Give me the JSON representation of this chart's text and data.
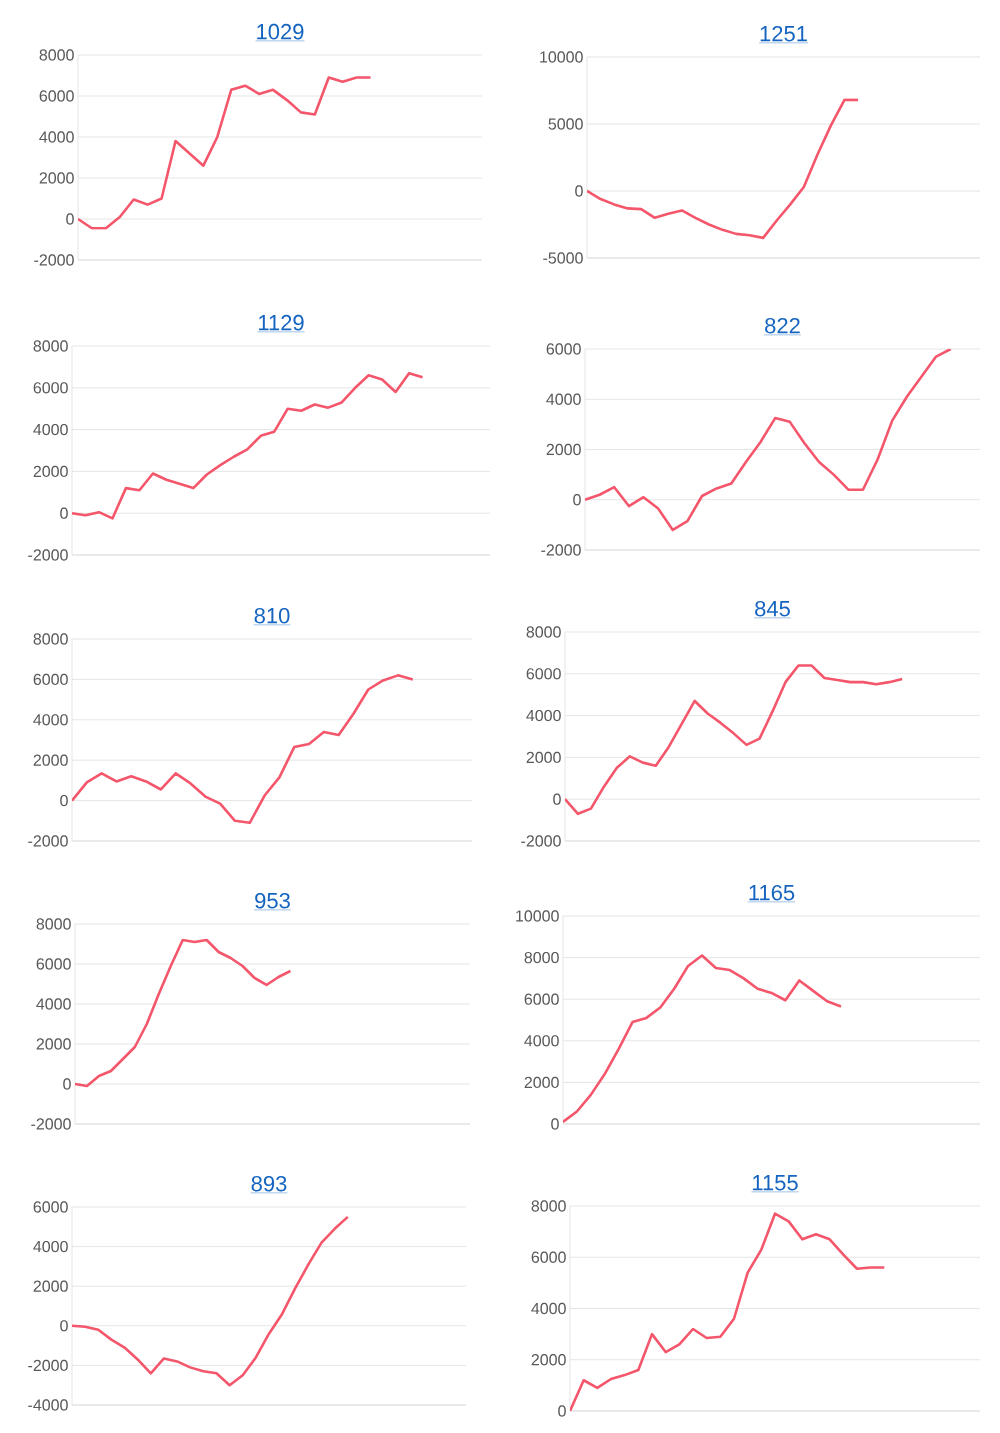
{
  "chart_data": [
    {
      "type": "line",
      "title": "1029",
      "categories": [
        null,
        null,
        null,
        null,
        null,
        null,
        null,
        null,
        null,
        null,
        null,
        null,
        null,
        null,
        null,
        null,
        null,
        null,
        null,
        null,
        null,
        null,
        null,
        null,
        null,
        null,
        null,
        null,
        null,
        null
      ],
      "values": [
        0,
        -450,
        -450,
        100,
        950,
        700,
        1000,
        3800,
        3200,
        2600,
        4000,
        6300,
        6500,
        6100,
        6300,
        5800,
        5200,
        5100,
        6900,
        6700,
        6900,
        6900,
        null,
        null,
        null,
        null,
        null,
        null,
        null,
        null
      ],
      "color": "#f4566b",
      "ylim": [
        -2000,
        8000
      ],
      "yticks": [
        -2000,
        0,
        2000,
        4000,
        6000,
        8000
      ],
      "grid": "y",
      "tick_labels": "y"
    },
    {
      "type": "line",
      "title": "1251",
      "categories": [
        null,
        null,
        null,
        null,
        null,
        null,
        null,
        null,
        null,
        null,
        null,
        null,
        null,
        null,
        null,
        null,
        null,
        null,
        null,
        null,
        null,
        null,
        null,
        null,
        null,
        null,
        null,
        null,
        null,
        null
      ],
      "values": [
        0,
        -600,
        -1000,
        -1300,
        -1350,
        -2000,
        -1700,
        -1450,
        -2000,
        -2500,
        -2900,
        -3200,
        -3300,
        -3500,
        -2200,
        -1000,
        300,
        2700,
        4900,
        6800,
        6800,
        null,
        null,
        null,
        null,
        null,
        null,
        null,
        null,
        null
      ],
      "color": "#f4566b",
      "ylim": [
        -5000,
        10000
      ],
      "yticks": [
        -5000,
        0,
        5000,
        10000
      ],
      "grid": "y",
      "tick_labels": "y"
    },
    {
      "type": "line",
      "title": "1129",
      "categories": [
        null,
        null,
        null,
        null,
        null,
        null,
        null,
        null,
        null,
        null,
        null,
        null,
        null,
        null,
        null,
        null,
        null,
        null,
        null,
        null,
        null,
        null,
        null,
        null,
        null,
        null,
        null,
        null,
        null,
        null,
        null,
        null
      ],
      "values": [
        0,
        -100,
        50,
        -250,
        1200,
        1100,
        1900,
        1600,
        1400,
        1200,
        1850,
        2300,
        2700,
        3050,
        3700,
        3900,
        5000,
        4900,
        5200,
        5050,
        5300,
        6000,
        6600,
        6400,
        5800,
        6700,
        6500,
        null,
        null,
        null,
        null,
        null
      ],
      "color": "#f4566b",
      "ylim": [
        -2000,
        8000
      ],
      "yticks": [
        -2000,
        0,
        2000,
        4000,
        6000,
        8000
      ],
      "grid": "y",
      "tick_labels": "y"
    },
    {
      "type": "line",
      "title": "822",
      "categories": [
        null,
        null,
        null,
        null,
        null,
        null,
        null,
        null,
        null,
        null,
        null,
        null,
        null,
        null,
        null,
        null,
        null,
        null,
        null,
        null,
        null,
        null,
        null,
        null,
        null,
        null,
        null,
        null
      ],
      "values": [
        0,
        200,
        500,
        -250,
        100,
        -350,
        -1200,
        -850,
        150,
        450,
        650,
        1500,
        2300,
        3250,
        3100,
        2250,
        1500,
        1000,
        400,
        400,
        1600,
        3150,
        4100,
        4900,
        5700,
        6000,
        null,
        null
      ],
      "color": "#f4566b",
      "ylim": [
        -2000,
        6000
      ],
      "yticks": [
        -2000,
        0,
        2000,
        4000,
        6000
      ],
      "grid": "y",
      "tick_labels": "y"
    },
    {
      "type": "line",
      "title": "810",
      "categories": [
        null,
        null,
        null,
        null,
        null,
        null,
        null,
        null,
        null,
        null,
        null,
        null,
        null,
        null,
        null,
        null,
        null,
        null,
        null,
        null,
        null,
        null,
        null,
        null,
        null,
        null,
        null,
        null
      ],
      "values": [
        0,
        900,
        1350,
        950,
        1200,
        950,
        550,
        1350,
        850,
        200,
        -150,
        -1000,
        -1100,
        250,
        1150,
        2650,
        2800,
        3400,
        3250,
        4300,
        5500,
        5950,
        6200,
        6000,
        null,
        null,
        null,
        null
      ],
      "color": "#f4566b",
      "ylim": [
        -2000,
        8000
      ],
      "yticks": [
        -2000,
        0,
        2000,
        4000,
        6000,
        8000
      ],
      "grid": "y",
      "tick_labels": "y"
    },
    {
      "type": "line",
      "title": "845",
      "categories": [
        null,
        null,
        null,
        null,
        null,
        null,
        null,
        null,
        null,
        null,
        null,
        null,
        null,
        null,
        null,
        null,
        null,
        null,
        null,
        null,
        null,
        null,
        null,
        null,
        null,
        null,
        null,
        null,
        null,
        null,
        null,
        null,
        null
      ],
      "values": [
        0,
        -700,
        -450,
        600,
        1500,
        2050,
        1750,
        1600,
        2500,
        3600,
        4700,
        4100,
        3650,
        3150,
        2600,
        2900,
        4200,
        5600,
        6400,
        6400,
        5800,
        5700,
        5600,
        5600,
        5500,
        5600,
        5750,
        null,
        null,
        null,
        null,
        null,
        null
      ],
      "color": "#f4566b",
      "ylim": [
        -2000,
        8000
      ],
      "yticks": [
        -2000,
        0,
        2000,
        4000,
        6000,
        8000
      ],
      "grid": "y",
      "tick_labels": "y"
    },
    {
      "type": "line",
      "title": "953",
      "categories": [
        null,
        null,
        null,
        null,
        null,
        null,
        null,
        null,
        null,
        null,
        null,
        null,
        null,
        null,
        null,
        null,
        null,
        null,
        null,
        null,
        null,
        null,
        null,
        null,
        null,
        null,
        null,
        null,
        null,
        null,
        null,
        null,
        null,
        null
      ],
      "values": [
        0,
        -100,
        400,
        650,
        1250,
        1850,
        3000,
        4500,
        5900,
        7200,
        7100,
        7200,
        6600,
        6300,
        5900,
        5300,
        4950,
        5350,
        5650,
        null,
        null,
        null,
        null,
        null,
        null,
        null,
        null,
        null,
        null,
        null,
        null,
        null,
        null,
        null
      ],
      "color": "#f4566b",
      "ylim": [
        -2000,
        8000
      ],
      "yticks": [
        -2000,
        0,
        2000,
        4000,
        6000,
        8000
      ],
      "grid": "y",
      "tick_labels": "y"
    },
    {
      "type": "line",
      "title": "1165",
      "categories": [
        null,
        null,
        null,
        null,
        null,
        null,
        null,
        null,
        null,
        null,
        null,
        null,
        null,
        null,
        null,
        null,
        null,
        null,
        null,
        null,
        null,
        null,
        null,
        null,
        null,
        null,
        null,
        null,
        null,
        null,
        null
      ],
      "values": [
        100,
        600,
        1400,
        2400,
        3600,
        4900,
        5100,
        5600,
        6500,
        7600,
        8100,
        7500,
        7400,
        7000,
        6500,
        6300,
        5950,
        6900,
        6400,
        5900,
        5650,
        null,
        null,
        null,
        null,
        null,
        null,
        null,
        null,
        null,
        null
      ],
      "color": "#f4566b",
      "ylim": [
        0,
        10000
      ],
      "yticks": [
        0,
        2000,
        4000,
        6000,
        8000,
        10000
      ],
      "grid": "y",
      "tick_labels": "y"
    },
    {
      "type": "line",
      "title": "893",
      "categories": [
        null,
        null,
        null,
        null,
        null,
        null,
        null,
        null,
        null,
        null,
        null,
        null,
        null,
        null,
        null,
        null,
        null,
        null,
        null,
        null,
        null,
        null,
        null,
        null,
        null,
        null,
        null,
        null,
        null,
        null,
        null
      ],
      "values": [
        0,
        -50,
        -200,
        -700,
        -1100,
        -1700,
        -2400,
        -1650,
        -1800,
        -2100,
        -2300,
        -2400,
        -3000,
        -2500,
        -1600,
        -400,
        600,
        1900,
        3100,
        4200,
        4900,
        5500,
        null,
        null,
        null,
        null,
        null,
        null,
        null,
        null,
        null
      ],
      "color": "#f4566b",
      "ylim": [
        -4000,
        6000
      ],
      "yticks": [
        -4000,
        -2000,
        0,
        2000,
        4000,
        6000
      ],
      "grid": "y",
      "tick_labels": "y"
    },
    {
      "type": "line",
      "title": "1155",
      "categories": [
        null,
        null,
        null,
        null,
        null,
        null,
        null,
        null,
        null,
        null,
        null,
        null,
        null,
        null,
        null,
        null,
        null,
        null,
        null,
        null,
        null,
        null,
        null,
        null,
        null,
        null,
        null,
        null,
        null,
        null,
        null
      ],
      "values": [
        0,
        1200,
        900,
        1250,
        1400,
        1600,
        3000,
        2300,
        2600,
        3200,
        2850,
        2900,
        3600,
        5400,
        6300,
        7700,
        7400,
        6700,
        6900,
        6700,
        6100,
        5550,
        5600,
        5600,
        null,
        null,
        null,
        null,
        null,
        null,
        null
      ],
      "color": "#f4566b",
      "ylim": [
        0,
        8000
      ],
      "yticks": [
        0,
        2000,
        4000,
        6000,
        8000
      ],
      "grid": "y",
      "tick_labels": "y"
    }
  ]
}
